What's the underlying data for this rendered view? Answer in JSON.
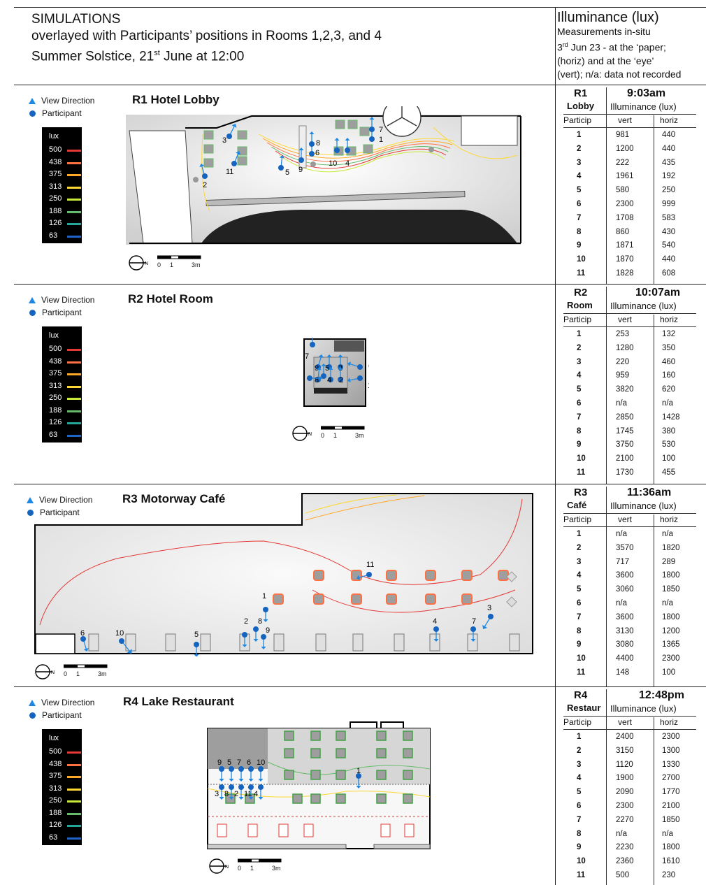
{
  "header": {
    "title_l1": "SIMULATIONS",
    "title_l2": "overlayed with Participants’ positions in Rooms 1,2,3, and 4",
    "title_l3a": "Summer Solstice, 21",
    "title_l3sup": "st",
    "title_l3b": " June at 12:00",
    "meas_l1": "Illuminance (lux)",
    "meas_l2": "Measurements in-situ",
    "meas_l3a": "3",
    "meas_l3sup": "rd",
    "meas_l3b": " Jun 23 - at the ‘paper;",
    "meas_l4": "(horiz) and at the ‘eye’",
    "meas_l5": "(vert); n/a: data not recorded"
  },
  "legend": {
    "view_direction": "View Direction",
    "participant": "Participant",
    "lux_title": "lux",
    "levels": [
      {
        "value": "500",
        "color": "#e53935"
      },
      {
        "value": "438",
        "color": "#ff7043"
      },
      {
        "value": "375",
        "color": "#ffa726"
      },
      {
        "value": "313",
        "color": "#fdd835"
      },
      {
        "value": "250",
        "color": "#c6e93b"
      },
      {
        "value": "188",
        "color": "#66bb6a"
      },
      {
        "value": "126",
        "color": "#26a69a"
      },
      {
        "value": "63",
        "color": "#1e63c7"
      }
    ],
    "scale_labels": [
      "0",
      "1",
      "3m"
    ]
  },
  "rooms": [
    {
      "plan_title": "R1 Hotel Lobby",
      "code": "R1",
      "short": "Lobby",
      "time": "9:03am",
      "illum": "Illuminance (lux)",
      "col_particip": "Particip",
      "col_vert": "vert",
      "col_horiz": "horiz",
      "rows": [
        {
          "p": "1",
          "v": "981",
          "h": "440"
        },
        {
          "p": "2",
          "v": "1200",
          "h": "440"
        },
        {
          "p": "3",
          "v": "222",
          "h": "435"
        },
        {
          "p": "4",
          "v": "1961",
          "h": "192"
        },
        {
          "p": "5",
          "v": "580",
          "h": "250"
        },
        {
          "p": "6",
          "v": "2300",
          "h": "999"
        },
        {
          "p": "7",
          "v": "1708",
          "h": "583"
        },
        {
          "p": "8",
          "v": "860",
          "h": "430"
        },
        {
          "p": "9",
          "v": "1871",
          "h": "540"
        },
        {
          "p": "10",
          "v": "1870",
          "h": "440"
        },
        {
          "p": "11",
          "v": "1828",
          "h": "608"
        }
      ],
      "participants": [
        "1",
        "2",
        "3",
        "4",
        "5",
        "6",
        "7",
        "8",
        "9",
        "10",
        "11"
      ]
    },
    {
      "plan_title": "R2 Hotel Room",
      "code": "R2",
      "short": "Room",
      "time": "10:07am",
      "illum": "Illuminance (lux)",
      "col_particip": "Particip",
      "col_vert": "vert",
      "col_horiz": "horiz",
      "rows": [
        {
          "p": "1",
          "v": "253",
          "h": "132"
        },
        {
          "p": "2",
          "v": "1280",
          "h": "350"
        },
        {
          "p": "3",
          "v": "220",
          "h": "460"
        },
        {
          "p": "4",
          "v": "959",
          "h": "160"
        },
        {
          "p": "5",
          "v": "3820",
          "h": "620"
        },
        {
          "p": "6",
          "v": "n/a",
          "h": "n/a"
        },
        {
          "p": "7",
          "v": "2850",
          "h": "1428"
        },
        {
          "p": "8",
          "v": "1745",
          "h": "380"
        },
        {
          "p": "9",
          "v": "3750",
          "h": "530"
        },
        {
          "p": "10",
          "v": "2100",
          "h": "100"
        },
        {
          "p": "11",
          "v": "1730",
          "h": "455"
        }
      ],
      "participants": [
        "1",
        "2",
        "3",
        "4",
        "5",
        "6",
        "7",
        "8",
        "9",
        "10",
        "11"
      ]
    },
    {
      "plan_title": "R3 Motorway Café",
      "code": "R3",
      "short": "Café",
      "time": "11:36am",
      "illum": "Illuminance (lux)",
      "col_particip": "Particip",
      "col_vert": "vert",
      "col_horiz": "horiz",
      "rows": [
        {
          "p": "1",
          "v": "n/a",
          "h": "n/a"
        },
        {
          "p": "2",
          "v": "3570",
          "h": "1820"
        },
        {
          "p": "3",
          "v": "717",
          "h": "289"
        },
        {
          "p": "4",
          "v": "3600",
          "h": "1800"
        },
        {
          "p": "5",
          "v": "3060",
          "h": "1850"
        },
        {
          "p": "6",
          "v": "n/a",
          "h": "n/a"
        },
        {
          "p": "7",
          "v": "3600",
          "h": "1800"
        },
        {
          "p": "8",
          "v": "3130",
          "h": "1200"
        },
        {
          "p": "9",
          "v": "3080",
          "h": "1365"
        },
        {
          "p": "10",
          "v": "4400",
          "h": "2300"
        },
        {
          "p": "11",
          "v": "148",
          "h": "100"
        }
      ],
      "participants": [
        "1",
        "2",
        "3",
        "4",
        "5",
        "6",
        "7",
        "8",
        "9",
        "10",
        "11"
      ]
    },
    {
      "plan_title": "R4 Lake Restaurant",
      "code": "R4",
      "short": "Restaur",
      "time": "12:48pm",
      "illum": "Illuminance (lux)",
      "col_particip": "Particip",
      "col_vert": "vert",
      "col_horiz": "horiz",
      "rows": [
        {
          "p": "1",
          "v": "2400",
          "h": "2300"
        },
        {
          "p": "2",
          "v": "3150",
          "h": "1300"
        },
        {
          "p": "3",
          "v": "1120",
          "h": "1330"
        },
        {
          "p": "4",
          "v": "1900",
          "h": "2700"
        },
        {
          "p": "5",
          "v": "2090",
          "h": "1770"
        },
        {
          "p": "6",
          "v": "2300",
          "h": "2100"
        },
        {
          "p": "7",
          "v": "2270",
          "h": "1850"
        },
        {
          "p": "8",
          "v": "n/a",
          "h": "n/a"
        },
        {
          "p": "9",
          "v": "2230",
          "h": "1800"
        },
        {
          "p": "10",
          "v": "2360",
          "h": "1610"
        },
        {
          "p": "11",
          "v": "500",
          "h": "230"
        }
      ],
      "participants": [
        "1",
        "2",
        "3",
        "4",
        "5",
        "6",
        "7",
        "8",
        "9",
        "10",
        "11"
      ]
    }
  ]
}
